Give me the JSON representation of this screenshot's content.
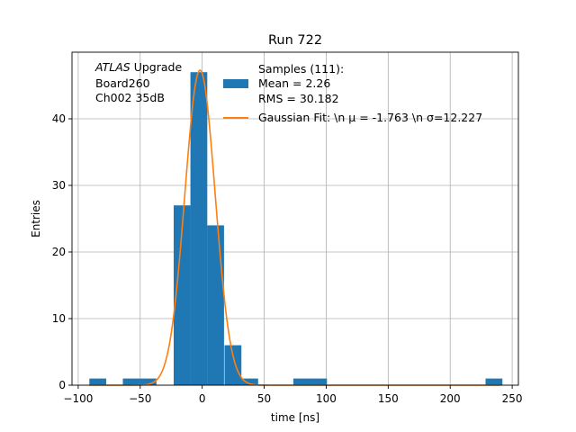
{
  "chart_data": {
    "type": "bar",
    "title": "Run 722",
    "xlabel": "time [ns]",
    "ylabel": "Entries",
    "xlim": [
      -105,
      255
    ],
    "ylim": [
      0,
      50
    ],
    "xticks": [
      -100,
      -50,
      0,
      50,
      100,
      150,
      200,
      250
    ],
    "yticks": [
      0,
      10,
      20,
      30,
      40
    ],
    "grid": true,
    "annotation": {
      "lines": [
        {
          "italic": "ATLAS",
          "rest": " Upgrade"
        },
        {
          "italic": "",
          "rest": " Board260"
        },
        {
          "italic": "",
          "rest": " Ch002 35dB"
        }
      ]
    },
    "legend": {
      "position": "top-right",
      "entries": [
        {
          "kind": "bar",
          "color": "#1f77b4",
          "lines": [
            "Samples (111):",
            " Mean = 2.26",
            " RMS = 30.182"
          ]
        },
        {
          "kind": "line",
          "color": "#ff7f0e",
          "lines": [
            "Gaussian Fit: \\n μ = -1.763 \\n σ=12.227"
          ]
        }
      ]
    },
    "series": [
      {
        "kind": "histogram",
        "color": "#1f77b4",
        "bin_width": 13.6,
        "bins": [
          {
            "x0": -91.0,
            "count": 1
          },
          {
            "x0": -64.0,
            "count": 1
          },
          {
            "x0": -50.5,
            "count": 1
          },
          {
            "x0": -23.0,
            "count": 27
          },
          {
            "x0": -9.5,
            "count": 47
          },
          {
            "x0": 4.0,
            "count": 24
          },
          {
            "x0": 18.0,
            "count": 6
          },
          {
            "x0": 31.5,
            "count": 1
          },
          {
            "x0": 73.5,
            "count": 1
          },
          {
            "x0": 87.0,
            "count": 1
          },
          {
            "x0": 228.5,
            "count": 1
          }
        ]
      },
      {
        "kind": "gaussian",
        "color": "#ff7f0e",
        "amplitude": 47.3,
        "mu": -1.763,
        "sigma": 12.227,
        "x_range": [
          -91,
          240
        ]
      }
    ]
  }
}
